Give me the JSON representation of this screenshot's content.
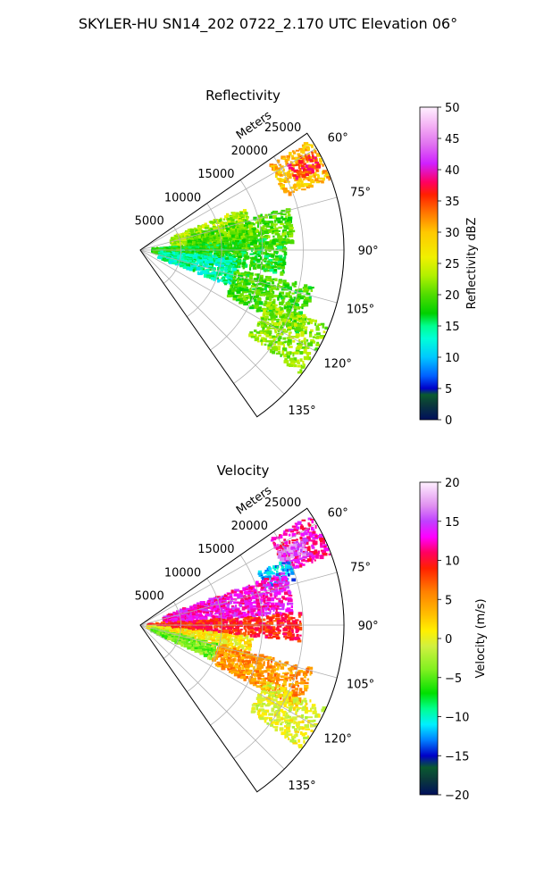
{
  "figure": {
    "suptitle": "SKYLER-HU  SN14_202  0722_2.170 UTC Elevation 06°"
  },
  "chart_data": [
    {
      "type": "heatmap",
      "projection": "polar-sector",
      "title": "Reflectivity",
      "range_label": "Meters",
      "range_ticks": [
        5000,
        10000,
        15000,
        20000,
        25000
      ],
      "range_tick_labels": [
        "5000",
        "10000",
        "15000",
        "20000",
        "25000"
      ],
      "range_max": 25000,
      "azimuth_range_deg": [
        55,
        145
      ],
      "azimuth_ticks_deg": [
        60,
        75,
        90,
        105,
        120,
        135
      ],
      "azimuth_tick_labels": [
        "60°",
        "75°",
        "90°",
        "105°",
        "120°",
        "135°"
      ],
      "grid": true,
      "colorbar": {
        "label": "Reflectivity dBZ",
        "min": 0,
        "max": 50,
        "ticks": [
          0,
          5,
          10,
          15,
          20,
          25,
          30,
          35,
          40,
          45,
          50
        ],
        "tick_labels": [
          "0",
          "5",
          "10",
          "15",
          "20",
          "25",
          "30",
          "35",
          "40",
          "45",
          "50"
        ],
        "stops": [
          {
            "v": 0,
            "c": "#000f5c"
          },
          {
            "v": 2.5,
            "c": "#0b3a3a"
          },
          {
            "v": 4,
            "c": "#0a5a30"
          },
          {
            "v": 5,
            "c": "#0000c8"
          },
          {
            "v": 7,
            "c": "#0060ff"
          },
          {
            "v": 10,
            "c": "#00c8ff"
          },
          {
            "v": 13,
            "c": "#00ffd8"
          },
          {
            "v": 15,
            "c": "#00ff90"
          },
          {
            "v": 17,
            "c": "#00d000"
          },
          {
            "v": 20,
            "c": "#50dc00"
          },
          {
            "v": 23,
            "c": "#b0f000"
          },
          {
            "v": 26,
            "c": "#f0f000"
          },
          {
            "v": 30,
            "c": "#ffc800"
          },
          {
            "v": 33,
            "c": "#ff7800"
          },
          {
            "v": 36,
            "c": "#ff2000"
          },
          {
            "v": 38,
            "c": "#ff0060"
          },
          {
            "v": 41,
            "c": "#d020ff"
          },
          {
            "v": 44,
            "c": "#e070f0"
          },
          {
            "v": 47,
            "c": "#f4b0f4"
          },
          {
            "v": 50,
            "c": "#fff0ff"
          }
        ]
      },
      "echo_regions": [
        {
          "az": [
            57,
            70
          ],
          "r": [
            19000,
            25000
          ],
          "value": 30
        },
        {
          "az": [
            60,
            66
          ],
          "r": [
            21000,
            24500
          ],
          "value": 36
        },
        {
          "az": [
            68,
            84
          ],
          "r": [
            4000,
            14000
          ],
          "value": 23
        },
        {
          "az": [
            74,
            90
          ],
          "r": [
            6000,
            19000
          ],
          "value": 20
        },
        {
          "az": [
            85,
            100
          ],
          "r": [
            1500,
            18000
          ],
          "value": 18
        },
        {
          "az": [
            95,
            112
          ],
          "r": [
            2500,
            12000
          ],
          "value": 14
        },
        {
          "az": [
            102,
            118
          ],
          "r": [
            12000,
            22000
          ],
          "value": 19
        },
        {
          "az": [
            112,
            128
          ],
          "r": [
            17000,
            25000
          ],
          "value": 22
        }
      ]
    },
    {
      "type": "heatmap",
      "projection": "polar-sector",
      "title": "Velocity",
      "range_label": "Meters",
      "range_ticks": [
        5000,
        10000,
        15000,
        20000,
        25000
      ],
      "range_tick_labels": [
        "5000",
        "10000",
        "15000",
        "20000",
        "25000"
      ],
      "range_max": 25000,
      "azimuth_range_deg": [
        55,
        145
      ],
      "azimuth_ticks_deg": [
        60,
        75,
        90,
        105,
        120,
        135
      ],
      "azimuth_tick_labels": [
        "60°",
        "75°",
        "90°",
        "105°",
        "120°",
        "135°"
      ],
      "grid": true,
      "colorbar": {
        "label": "Velocity (m/s)",
        "min": -20,
        "max": 20,
        "ticks": [
          -20,
          -15,
          -10,
          -5,
          0,
          5,
          10,
          15,
          20
        ],
        "tick_labels": [
          "−20",
          "−15",
          "−10",
          "−5",
          "0",
          "5",
          "10",
          "15",
          "20"
        ],
        "stops": [
          {
            "v": -20,
            "c": "#000f5c"
          },
          {
            "v": -18,
            "c": "#0b3a3a"
          },
          {
            "v": -16.5,
            "c": "#0a5a30"
          },
          {
            "v": -15,
            "c": "#0000c8"
          },
          {
            "v": -13,
            "c": "#0080ff"
          },
          {
            "v": -11,
            "c": "#00f0ff"
          },
          {
            "v": -9,
            "c": "#00ff90"
          },
          {
            "v": -7,
            "c": "#00e000"
          },
          {
            "v": -4,
            "c": "#80f020"
          },
          {
            "v": -1,
            "c": "#d0f040"
          },
          {
            "v": 1,
            "c": "#fff000"
          },
          {
            "v": 3,
            "c": "#ffc000"
          },
          {
            "v": 6,
            "c": "#ff8000"
          },
          {
            "v": 9,
            "c": "#ff2000"
          },
          {
            "v": 11,
            "c": "#ff0060"
          },
          {
            "v": 13,
            "c": "#ff00ff"
          },
          {
            "v": 15,
            "c": "#c040ff"
          },
          {
            "v": 17,
            "c": "#e090f0"
          },
          {
            "v": 20,
            "c": "#fff0ff"
          }
        ]
      },
      "echo_regions": [
        {
          "az": [
            57,
            70
          ],
          "r": [
            19000,
            25000
          ],
          "value": 12
        },
        {
          "az": [
            62,
            68
          ],
          "r": [
            19000,
            23000
          ],
          "value": 16
        },
        {
          "az": [
            66,
            74
          ],
          "r": [
            16000,
            20000
          ],
          "value": -12
        },
        {
          "az": [
            70,
            86
          ],
          "r": [
            3000,
            19000
          ],
          "value": 13
        },
        {
          "az": [
            86,
            96
          ],
          "r": [
            1000,
            20000
          ],
          "value": 9
        },
        {
          "az": [
            96,
            106
          ],
          "r": [
            1000,
            14000
          ],
          "value": 1
        },
        {
          "az": [
            104,
            116
          ],
          "r": [
            1500,
            10000
          ],
          "value": -4
        },
        {
          "az": [
            104,
            118
          ],
          "r": [
            10000,
            22000
          ],
          "value": 5
        },
        {
          "az": [
            114,
            128
          ],
          "r": [
            17000,
            25000
          ],
          "value": 0
        }
      ]
    }
  ]
}
